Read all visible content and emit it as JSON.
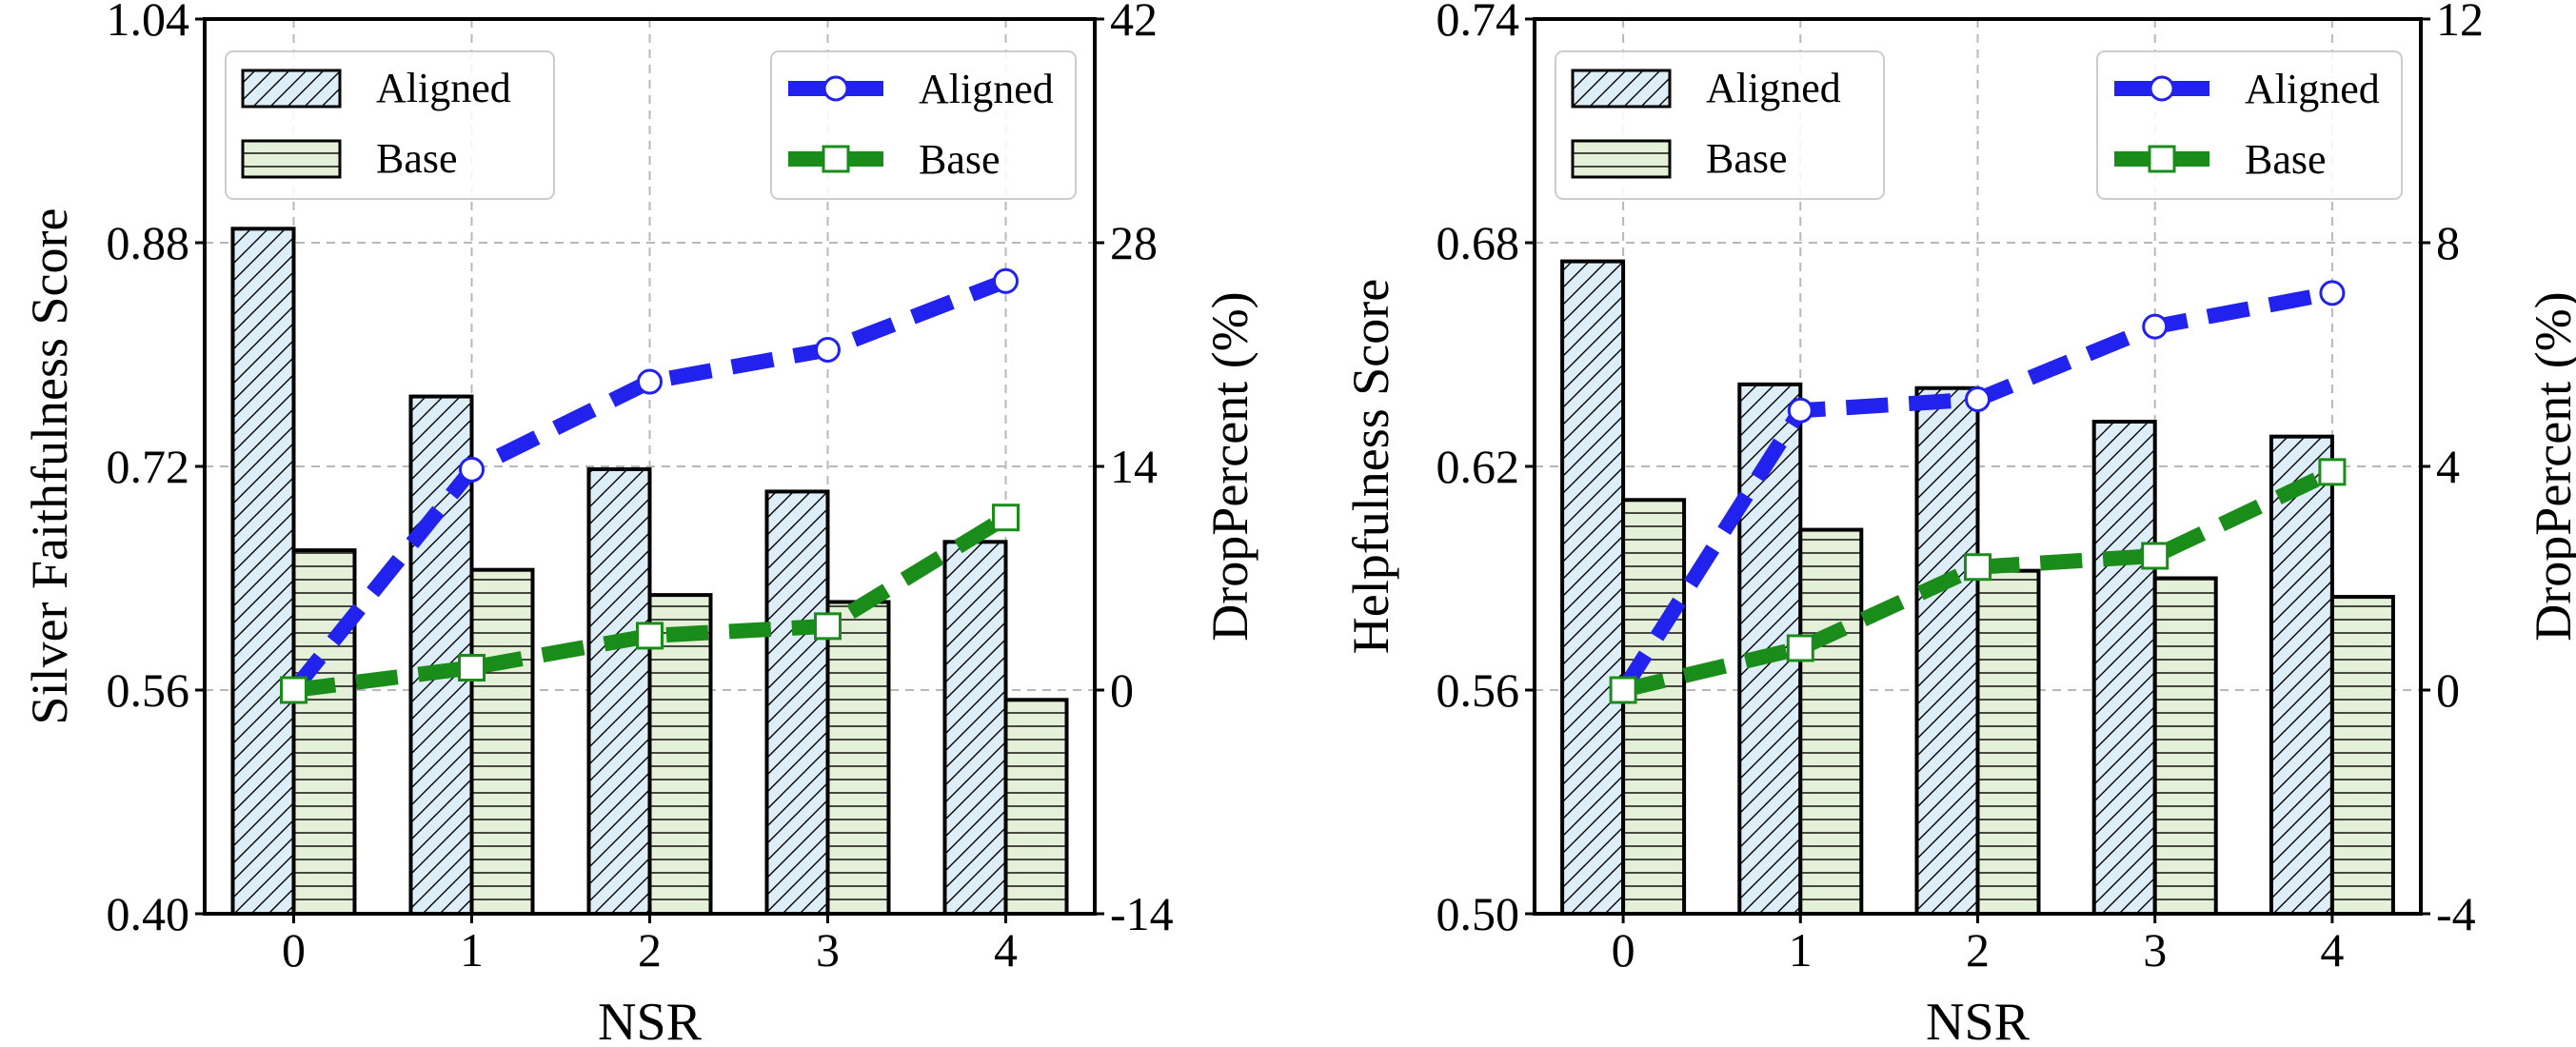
{
  "chart_data": [
    {
      "type": "bar+line",
      "xlabel": "NSR",
      "ylabel": "Silver Faithfulness Score",
      "y2label": "DropPercent (%)",
      "categories": [
        "0",
        "1",
        "2",
        "3",
        "4"
      ],
      "ylim": [
        0.4,
        1.04
      ],
      "yticks": [
        "0.40",
        "0.56",
        "0.72",
        "0.88",
        "1.04"
      ],
      "y2lim": [
        -14,
        42
      ],
      "y2ticks": [
        "-14",
        "0",
        "14",
        "28",
        "42"
      ],
      "bar_series": [
        {
          "name": "Aligned",
          "color": "#deeef8",
          "hatch": "diagonal",
          "values": [
            0.89,
            0.77,
            0.718,
            0.702,
            0.666
          ]
        },
        {
          "name": "Base",
          "color": "#e4f0d8",
          "hatch": "horizontal",
          "values": [
            0.66,
            0.646,
            0.628,
            0.623,
            0.553
          ]
        }
      ],
      "line_series": [
        {
          "name": "Aligned",
          "color": "#2222ee",
          "marker": "circle",
          "values": [
            0,
            13.8,
            19.3,
            21.3,
            25.6
          ]
        },
        {
          "name": "Base",
          "color": "#1a8c1a",
          "marker": "square",
          "values": [
            0,
            1.4,
            3.4,
            4.0,
            10.8
          ]
        }
      ]
    },
    {
      "type": "bar+line",
      "xlabel": "NSR",
      "ylabel": "Helpfulness Score",
      "y2label": "DropPercent (%)",
      "categories": [
        "0",
        "1",
        "2",
        "3",
        "4"
      ],
      "ylim": [
        0.5,
        0.74
      ],
      "yticks": [
        "0.50",
        "0.56",
        "0.62",
        "0.68",
        "0.74"
      ],
      "y2lim": [
        -4,
        12
      ],
      "y2ticks": [
        "-4",
        "0",
        "4",
        "8",
        "12"
      ],
      "bar_series": [
        {
          "name": "Aligned",
          "color": "#deeef8",
          "hatch": "diagonal",
          "values": [
            0.675,
            0.642,
            0.641,
            0.632,
            0.628
          ]
        },
        {
          "name": "Base",
          "color": "#e4f0d8",
          "hatch": "horizontal",
          "values": [
            0.611,
            0.603,
            0.592,
            0.59,
            0.585
          ]
        }
      ],
      "line_series": [
        {
          "name": "Aligned",
          "color": "#2222ee",
          "marker": "circle",
          "values": [
            0,
            5.0,
            5.2,
            6.5,
            7.1
          ]
        },
        {
          "name": "Base",
          "color": "#1a8c1a",
          "marker": "square",
          "values": [
            0,
            0.75,
            2.2,
            2.4,
            3.9
          ]
        }
      ]
    }
  ]
}
